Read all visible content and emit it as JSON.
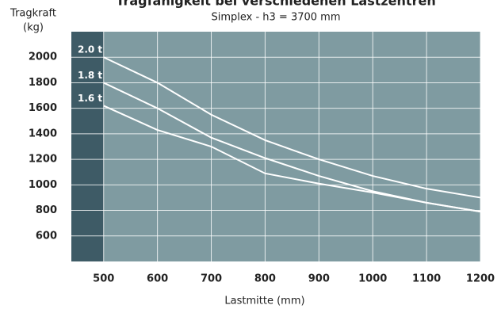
{
  "chart_data": {
    "type": "line",
    "title": "Tragfähigkeit bei verschiedenen Lastzentren",
    "subtitle": "Simplex - h3 = 3700 mm",
    "y_label_line1": "Tragkraft",
    "y_label_line2": "(kg)",
    "x_label": "Lastmitte (mm)",
    "x": [
      500,
      600,
      700,
      800,
      900,
      1000,
      1100,
      1200
    ],
    "series": [
      {
        "name": "2.0 t",
        "color": "#ffffff",
        "values": [
          2000,
          1800,
          1550,
          1350,
          1200,
          1070,
          970,
          900
        ]
      },
      {
        "name": "1.8 t",
        "color": "#ffffff",
        "values": [
          1800,
          1600,
          1370,
          1210,
          1070,
          950,
          860,
          790
        ]
      },
      {
        "name": "1.6 t",
        "color": "#ffffff",
        "values": [
          1620,
          1430,
          1300,
          1090,
          1010,
          940,
          860,
          790
        ]
      }
    ],
    "xlim": [
      440,
      1200
    ],
    "xticks": [
      500,
      600,
      700,
      800,
      900,
      1000,
      1100,
      1200
    ],
    "ylim": [
      400,
      2200
    ],
    "yticks": [
      600,
      800,
      1000,
      1200,
      1400,
      1600,
      1800,
      2000
    ],
    "grid": true
  }
}
